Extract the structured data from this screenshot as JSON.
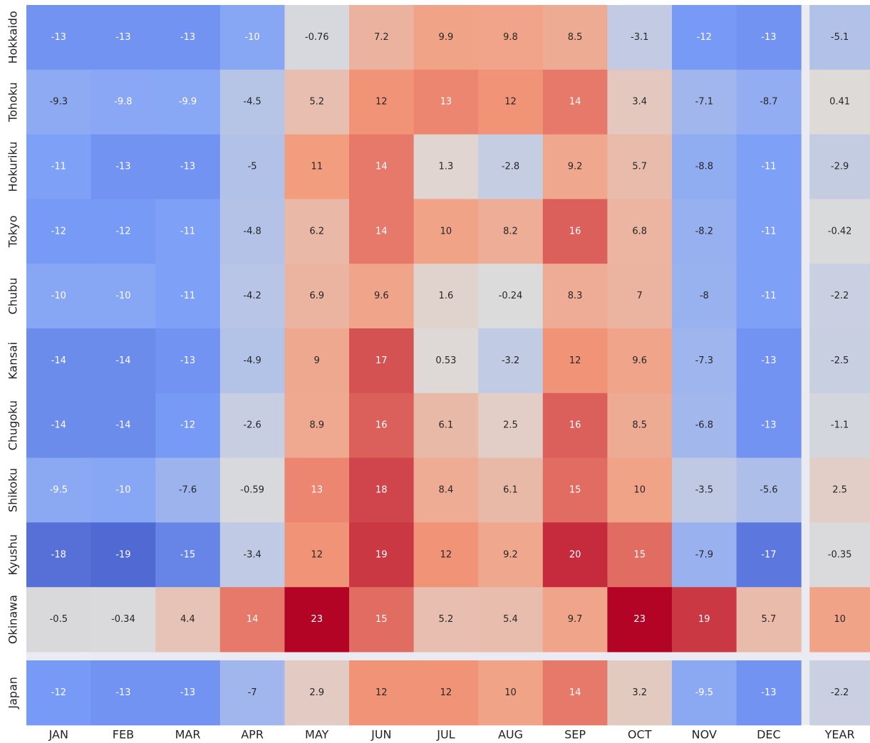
{
  "chart_data": {
    "type": "heatmap",
    "rows": [
      "Hokkaido",
      "Tohoku",
      "Hokuriku",
      "Tokyo",
      "Chubu",
      "Kansai",
      "Chugoku",
      "Shikoku",
      "Kyushu",
      "Okinawa",
      "Japan"
    ],
    "columns": [
      "JAN",
      "FEB",
      "MAR",
      "APR",
      "MAY",
      "JUN",
      "JUL",
      "AUG",
      "SEP",
      "OCT",
      "NOV",
      "DEC",
      "YEAR"
    ],
    "values": [
      [
        -13,
        -13,
        -13,
        -10,
        -0.76,
        7.2,
        9.9,
        9.8,
        8.5,
        -3.1,
        -12,
        -13,
        -5.1
      ],
      [
        -9.3,
        -9.8,
        -9.9,
        -4.5,
        5.2,
        12,
        13,
        12,
        14,
        3.4,
        -7.1,
        -8.7,
        0.41
      ],
      [
        -11,
        -13,
        -13,
        -5,
        11,
        14,
        1.3,
        -2.8,
        9.2,
        5.7,
        -8.8,
        -11,
        -2.9
      ],
      [
        -12,
        -12,
        -11,
        -4.8,
        6.2,
        14,
        10,
        8.2,
        16,
        6.8,
        -8.2,
        -11,
        -0.42
      ],
      [
        -10,
        -10,
        -11,
        -4.2,
        6.9,
        9.6,
        1.6,
        -0.24,
        8.3,
        7,
        -8,
        -11,
        -2.2
      ],
      [
        -14,
        -14,
        -13,
        -4.9,
        9,
        17,
        0.53,
        -3.2,
        12,
        9.6,
        -7.3,
        -13,
        -2.5
      ],
      [
        -14,
        -14,
        -12,
        -2.6,
        8.9,
        16,
        6.1,
        2.5,
        16,
        8.5,
        -6.8,
        -13,
        -1.1
      ],
      [
        -9.5,
        -10,
        -7.6,
        -0.59,
        13,
        18,
        8.4,
        6.1,
        15,
        10,
        -3.5,
        -5.6,
        2.5
      ],
      [
        -18,
        -19,
        -15,
        -3.4,
        12,
        19,
        12,
        9.2,
        20,
        15,
        -7.9,
        -17,
        -0.35
      ],
      [
        -0.5,
        -0.34,
        4.4,
        14,
        23,
        15,
        5.2,
        5.4,
        9.7,
        23,
        19,
        5.7,
        10
      ],
      [
        -12,
        -13,
        -13,
        -7,
        2.9,
        12,
        12,
        10,
        14,
        3.2,
        -9.5,
        -13,
        -2.2
      ]
    ],
    "colormap": "coolwarm",
    "vlim": [
      -23,
      23
    ],
    "separated_last_row": true,
    "separated_last_column": true
  }
}
